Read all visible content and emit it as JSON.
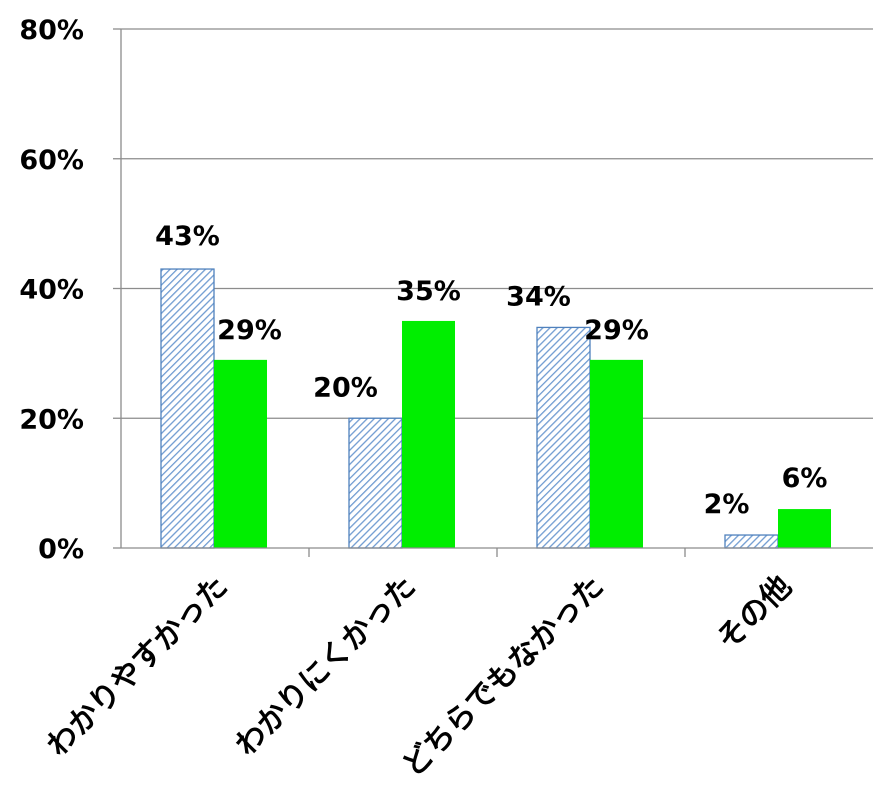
{
  "chart_data": {
    "type": "bar",
    "categories": [
      "わかりやすかった",
      "わかりにくかった",
      "どちらでもなかった",
      "その他"
    ],
    "series": [
      {
        "values": [
          43,
          20,
          34,
          2
        ],
        "color": "#4f81bd",
        "pattern": "diagonal-hatch"
      },
      {
        "values": [
          29,
          35,
          29,
          6
        ],
        "color": "#00ee00",
        "pattern": "solid"
      }
    ],
    "data_labels": [
      [
        "43%",
        "20%",
        "34%",
        "2%"
      ],
      [
        "29%",
        "35%",
        "29%",
        "6%"
      ]
    ],
    "yticks": [
      "0%",
      "20%",
      "40%",
      "60%",
      "80%"
    ],
    "ytick_values": [
      0,
      20,
      40,
      60,
      80
    ],
    "ylim": [
      0,
      80
    ],
    "grid": true,
    "legend": "none"
  }
}
